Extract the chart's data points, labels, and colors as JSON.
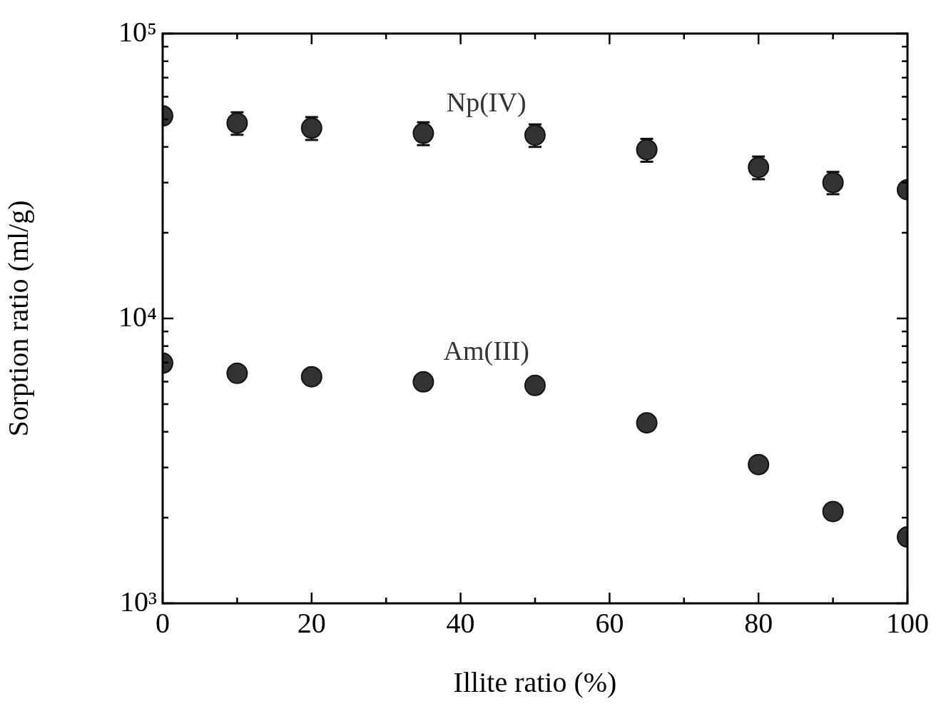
{
  "chart_data": {
    "type": "scatter",
    "xlabel": "Illite ratio (%)",
    "ylabel": "Sorption ratio (ml/g)",
    "log": "y",
    "marker": "circle",
    "x": [
      0,
      10,
      20,
      35,
      50,
      65,
      80,
      90,
      100
    ],
    "xlim": [
      0,
      100
    ],
    "xticks": [
      0,
      {
        "value": 10,
        "label": null
      },
      20,
      {
        "value": 30,
        "label": null
      },
      40,
      {
        "value": 50,
        "label": null
      },
      60,
      {
        "value": 70,
        "label": null
      },
      80,
      {
        "value": 90,
        "label": null
      },
      100
    ],
    "ylim": [
      1000,
      100000
    ],
    "yticks": [
      {
        "value": 1000,
        "label": "10³"
      },
      {
        "value": 2000,
        "label": null
      },
      {
        "value": 3000,
        "label": null
      },
      {
        "value": 4000,
        "label": null
      },
      {
        "value": 5000,
        "label": null
      },
      {
        "value": 6000,
        "label": null
      },
      {
        "value": 7000,
        "label": null
      },
      {
        "value": 8000,
        "label": null
      },
      {
        "value": 9000,
        "label": null
      },
      {
        "value": 10000,
        "label": "10⁴"
      },
      {
        "value": 20000,
        "label": null
      },
      {
        "value": 30000,
        "label": null
      },
      {
        "value": 40000,
        "label": null
      },
      {
        "value": 50000,
        "label": null
      },
      {
        "value": 60000,
        "label": null
      },
      {
        "value": 70000,
        "label": null
      },
      {
        "value": 80000,
        "label": null
      },
      {
        "value": 90000,
        "label": null
      },
      {
        "value": 100000,
        "label": "10⁵"
      }
    ],
    "series": [
      {
        "name": "Np(IV)",
        "color": "#333333",
        "values": [
          51400,
          48500,
          46600,
          44700,
          44000,
          39100,
          33900,
          30000,
          28300
        ],
        "errors": [
          null,
          4400,
          4300,
          4100,
          4000,
          3600,
          3100,
          2700,
          null
        ]
      },
      {
        "name": "Am(III)",
        "color": "#333333",
        "values": [
          6970,
          6420,
          6240,
          5990,
          5820,
          4300,
          3070,
          2100,
          1710
        ]
      }
    ]
  }
}
